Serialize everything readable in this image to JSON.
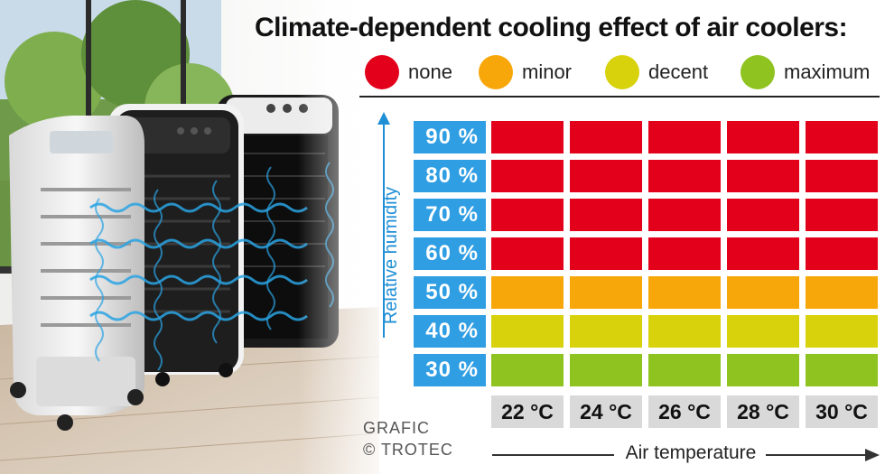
{
  "chart_data": {
    "type": "heatmap",
    "title": "Climate-dependent cooling effect of air coolers:",
    "ylabel": "Relative humidity",
    "xlabel": "Air temperature",
    "y_categories": [
      "90 %",
      "80 %",
      "70 %",
      "60 %",
      "50 %",
      "40 %",
      "30 %"
    ],
    "x_categories": [
      "22 °C",
      "24 °C",
      "26 °C",
      "28 °C",
      "30 °C"
    ],
    "legend": [
      {
        "level": 0,
        "label": "none",
        "color": "#e3001b"
      },
      {
        "level": 1,
        "label": "minor",
        "color": "#f7a70a"
      },
      {
        "level": 2,
        "label": "decent",
        "color": "#d8d20c"
      },
      {
        "level": 3,
        "label": "maximum",
        "color": "#8fc31f"
      }
    ],
    "values": [
      [
        0,
        0,
        0,
        0,
        0
      ],
      [
        0,
        0,
        0,
        0,
        0
      ],
      [
        0,
        0,
        0,
        0,
        0
      ],
      [
        0,
        0,
        0,
        0,
        0
      ],
      [
        1,
        1,
        1,
        1,
        1
      ],
      [
        2,
        2,
        2,
        2,
        2
      ],
      [
        3,
        3,
        3,
        3,
        3
      ]
    ]
  },
  "credit": {
    "line1": "GRAFIC",
    "line2": "© TROTEC"
  }
}
